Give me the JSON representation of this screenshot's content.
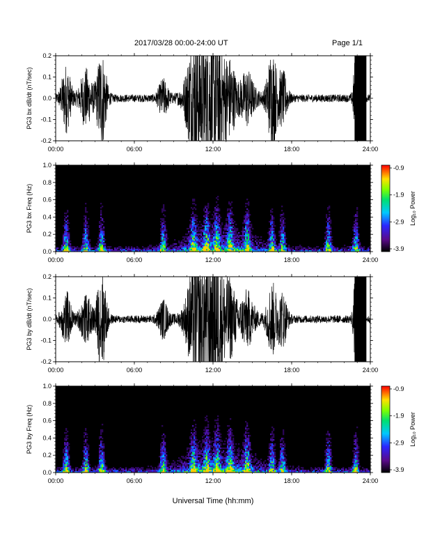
{
  "header": {
    "date_range": "2017/03/28  00:00-24:00 UT",
    "page": "Page 1/1"
  },
  "x_axis": {
    "label": "Universal Time (hh:mm)",
    "ticks": [
      "00:00",
      "06:00",
      "12:00",
      "18:00",
      "24:00"
    ],
    "range_hours": [
      0,
      24
    ]
  },
  "chart_data": [
    {
      "type": "line",
      "ylabel": "PG3 bx dB/dt (nT/sec)",
      "ylim": [
        -0.2,
        0.2
      ],
      "yticks": [
        "0.2",
        "0.1",
        "0.0",
        "-0.1",
        "-0.2"
      ],
      "xlim": [
        0,
        24
      ],
      "color": "#000000",
      "activity_bursts": [
        {
          "center_hours": 0.8,
          "width_hours": 0.4,
          "peak": 0.15
        },
        {
          "center_hours": 2.3,
          "width_hours": 0.5,
          "peak": 0.13
        },
        {
          "center_hours": 3.5,
          "width_hours": 0.4,
          "peak": 0.22
        },
        {
          "center_hours": 8.2,
          "width_hours": 0.4,
          "peak": 0.08
        },
        {
          "center_hours": 10.5,
          "width_hours": 0.6,
          "peak": 0.22
        },
        {
          "center_hours": 11.5,
          "width_hours": 0.9,
          "peak": 0.2
        },
        {
          "center_hours": 12.3,
          "width_hours": 0.6,
          "peak": 0.22
        },
        {
          "center_hours": 13.3,
          "width_hours": 0.5,
          "peak": 0.14
        },
        {
          "center_hours": 14.6,
          "width_hours": 0.5,
          "peak": 0.1
        },
        {
          "center_hours": 16.5,
          "width_hours": 0.4,
          "peak": 0.22
        },
        {
          "center_hours": 17.3,
          "width_hours": 0.4,
          "peak": 0.12
        },
        {
          "center_hours": 22.9,
          "width_hours": 0.2,
          "peak": 0.22
        }
      ],
      "saturated_block_hours": [
        22.8,
        23.7
      ]
    },
    {
      "type": "heatmap",
      "ylabel": "PG3 bx Freq (Hz)",
      "ylim": [
        0.0,
        1.0
      ],
      "yticks": [
        "1.0",
        "0.8",
        "0.6",
        "0.4",
        "0.2",
        "0.0"
      ],
      "xlim": [
        0,
        24
      ],
      "colorbar": {
        "label": "Log₁₀ Power",
        "ticks": [
          "-0.9",
          "-1.9",
          "-2.9",
          "-3.9"
        ],
        "range": [
          -3.9,
          -0.9
        ]
      },
      "bright_bands_hours": [
        0.8,
        2.3,
        3.5,
        8.2,
        10.5,
        11.5,
        12.3,
        13.3,
        14.6,
        16.5,
        17.3,
        20.8,
        22.9
      ]
    },
    {
      "type": "line",
      "ylabel": "PG3 by dB/dt (nT/sec)",
      "ylim": [
        -0.2,
        0.2
      ],
      "yticks": [
        "0.2",
        "0.1",
        "0.0",
        "-0.1",
        "-0.2"
      ],
      "xlim": [
        0,
        24
      ],
      "color": "#000000",
      "activity_bursts": [
        {
          "center_hours": 0.8,
          "width_hours": 0.4,
          "peak": 0.12
        },
        {
          "center_hours": 2.3,
          "width_hours": 0.5,
          "peak": 0.1
        },
        {
          "center_hours": 3.5,
          "width_hours": 0.4,
          "peak": 0.22
        },
        {
          "center_hours": 8.2,
          "width_hours": 0.4,
          "peak": 0.08
        },
        {
          "center_hours": 10.5,
          "width_hours": 0.6,
          "peak": 0.18
        },
        {
          "center_hours": 11.5,
          "width_hours": 0.9,
          "peak": 0.2
        },
        {
          "center_hours": 12.3,
          "width_hours": 0.6,
          "peak": 0.22
        },
        {
          "center_hours": 13.3,
          "width_hours": 0.5,
          "peak": 0.14
        },
        {
          "center_hours": 14.6,
          "width_hours": 0.5,
          "peak": 0.1
        },
        {
          "center_hours": 16.5,
          "width_hours": 0.4,
          "peak": 0.16
        },
        {
          "center_hours": 17.3,
          "width_hours": 0.4,
          "peak": 0.12
        },
        {
          "center_hours": 22.9,
          "width_hours": 0.2,
          "peak": 0.22
        }
      ],
      "saturated_block_hours": [
        22.8,
        23.7
      ]
    },
    {
      "type": "heatmap",
      "ylabel": "PG3 by Freq (Hz)",
      "ylim": [
        0.0,
        1.0
      ],
      "yticks": [
        "1.0",
        "0.8",
        "0.6",
        "0.4",
        "0.2",
        "0.0"
      ],
      "xlim": [
        0,
        24
      ],
      "colorbar": {
        "label": "Log₁₀ Power",
        "ticks": [
          "-0.9",
          "-1.9",
          "-2.9",
          "-3.9"
        ],
        "range": [
          -3.9,
          -0.9
        ]
      },
      "bright_bands_hours": [
        0.8,
        2.3,
        3.5,
        8.2,
        10.5,
        11.5,
        12.3,
        13.3,
        14.6,
        16.5,
        17.3,
        20.8,
        22.9
      ]
    }
  ]
}
